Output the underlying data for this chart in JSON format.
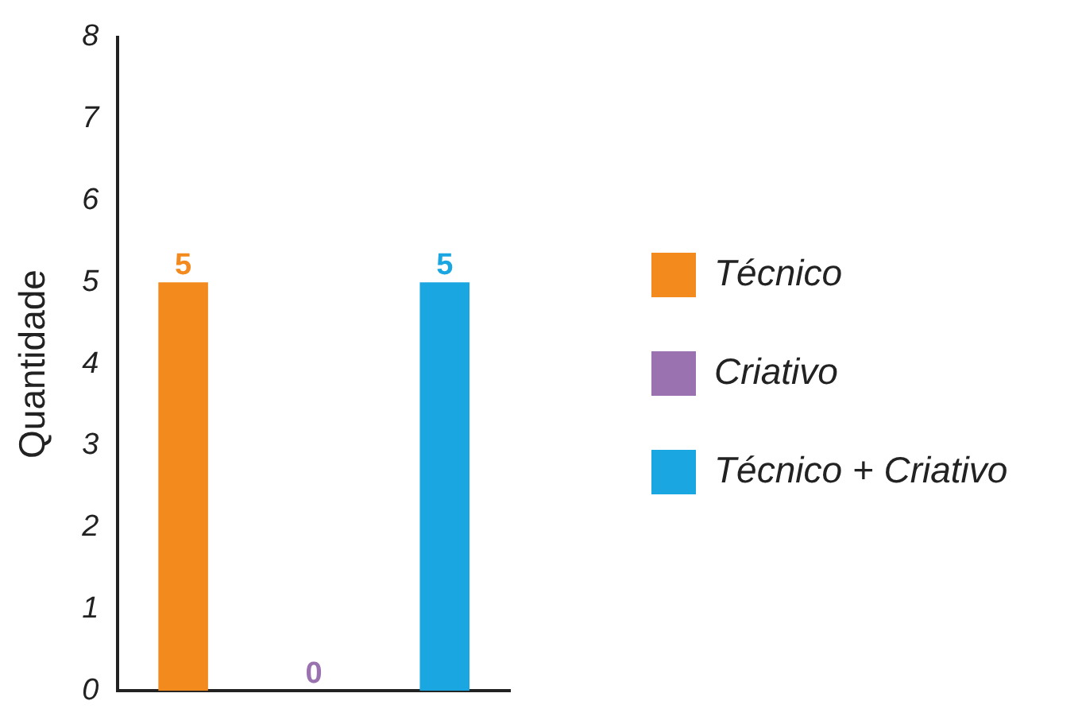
{
  "chart_data": {
    "type": "bar",
    "ylabel": "Quantidade",
    "categories": [
      null,
      null,
      null
    ],
    "series": [
      {
        "name": "Técnico",
        "color": "#f28a1e",
        "values": [
          5,
          null,
          null
        ]
      },
      {
        "name": "Criativo",
        "color": "#9b72b0",
        "values": [
          null,
          0,
          null
        ]
      },
      {
        "name": "Técnico + Criativo",
        "color": "#1aa6e0",
        "values": [
          null,
          null,
          5
        ]
      }
    ],
    "ylim": [
      0,
      8
    ],
    "yticks": [
      0,
      1,
      2,
      3,
      4,
      5,
      6,
      7,
      8
    ],
    "grid": false,
    "legend": "right",
    "tick_labels": "y",
    "data_labels": true
  }
}
